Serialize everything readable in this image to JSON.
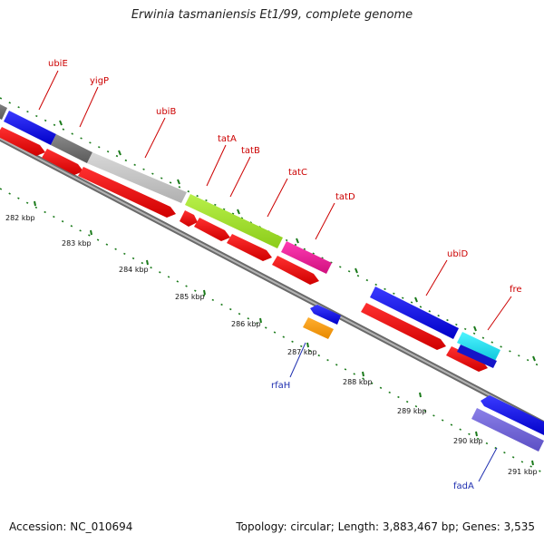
{
  "title": "Erwinia tasmaniensis Et1/99, complete genome",
  "footer": {
    "accession": "Accession: NC_010694",
    "stats": "Topology: circular; Length: 3,883,467 bp; Genes: 3,535"
  },
  "ticks": [
    "282 kbp",
    "283 kbp",
    "284 kbp",
    "285 kbp",
    "286 kbp",
    "287 kbp",
    "288 kbp",
    "289 kbp",
    "290 kbp",
    "291 kbp"
  ],
  "gene_labels": [
    {
      "name": "ubiE",
      "strand": "forward"
    },
    {
      "name": "yigP",
      "strand": "forward"
    },
    {
      "name": "ubiB",
      "strand": "forward"
    },
    {
      "name": "tatA",
      "strand": "forward"
    },
    {
      "name": "tatB",
      "strand": "forward"
    },
    {
      "name": "tatC",
      "strand": "forward"
    },
    {
      "name": "tatD",
      "strand": "forward"
    },
    {
      "name": "ubiD",
      "strand": "forward"
    },
    {
      "name": "fre",
      "strand": "forward"
    },
    {
      "name": "rfaH",
      "strand": "reverse"
    },
    {
      "name": "fadA",
      "strand": "reverse"
    }
  ],
  "colors": {
    "forward_label": "#cc0000",
    "reverse_label": "#1f2fb0",
    "tick_green": "#1a7a1a",
    "backbone": "#888888"
  }
}
